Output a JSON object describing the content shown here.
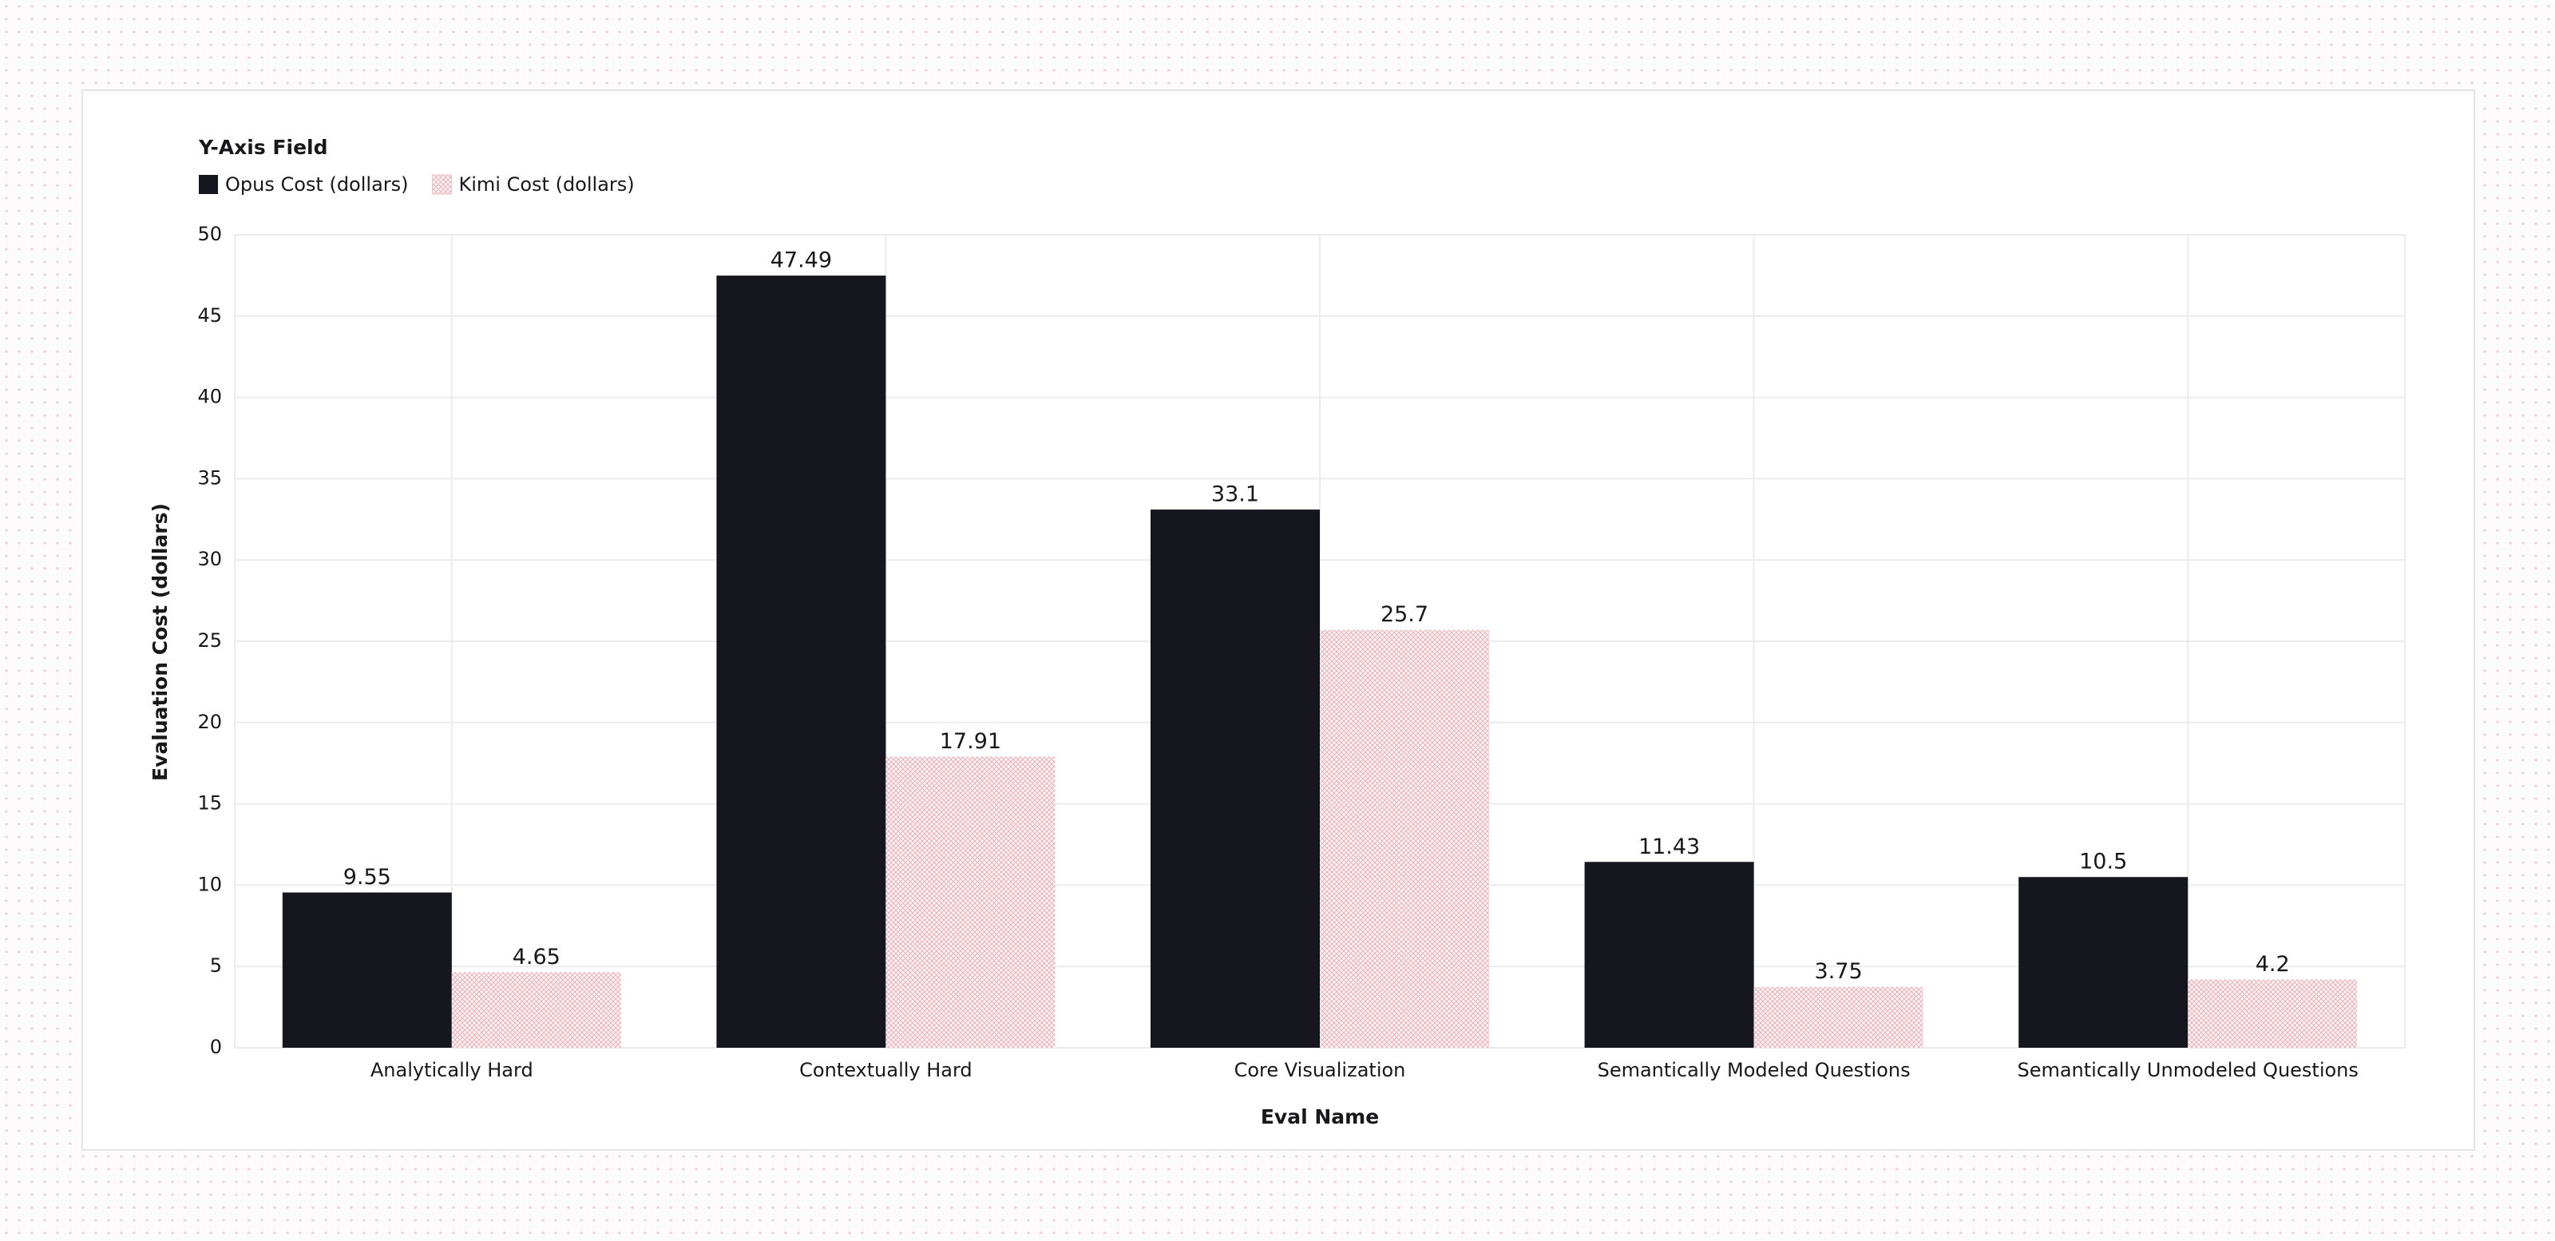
{
  "chart_data": {
    "type": "bar",
    "legend_title": "Y-Axis Field",
    "x_label": "Eval Name",
    "y_label": "Evaluation Cost (dollars)",
    "categories": [
      "Analytically Hard",
      "Contextually Hard",
      "Core Visualization",
      "Semantically Modeled Questions",
      "Semantically Unmodeled Questions"
    ],
    "series": [
      {
        "name": "Opus Cost (dollars)",
        "color": "#15161e",
        "values": [
          9.55,
          47.49,
          33.1,
          11.43,
          10.5
        ]
      },
      {
        "name": "Kimi Cost (dollars)",
        "color": "#f1c2c6",
        "values": [
          4.65,
          17.91,
          25.7,
          3.75,
          4.2
        ]
      }
    ],
    "ylim": [
      0,
      50
    ],
    "yticks": [
      0,
      5,
      10,
      15,
      20,
      25,
      30,
      35,
      40,
      45,
      50
    ],
    "grid": true
  }
}
